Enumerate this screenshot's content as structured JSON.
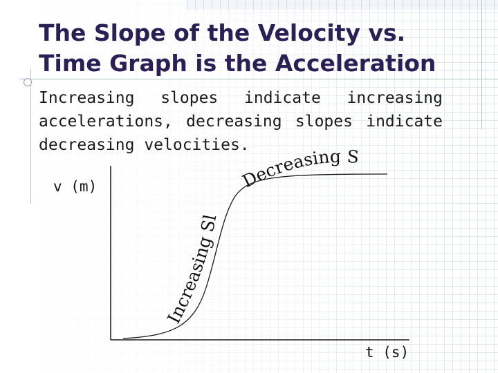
{
  "slide": {
    "title_line1": "The Slope of the Velocity vs.",
    "title_line2": "Time Graph is the Acceleration",
    "body": "Increasing slopes indicate increasing accelerations, decreasing slopes indicate decreasing velocities."
  },
  "graph": {
    "y_axis_label": "v (m)",
    "x_axis_label": "t (s)",
    "increasing_label": "Increasing Slope",
    "decreasing_label": "Decreasing Slope"
  },
  "colors": {
    "title": "#2b1f57",
    "text": "#1a1a1a",
    "axis": "#1a1a1a",
    "curve": "#1a1a1a",
    "grid": "#dfe6ef"
  }
}
